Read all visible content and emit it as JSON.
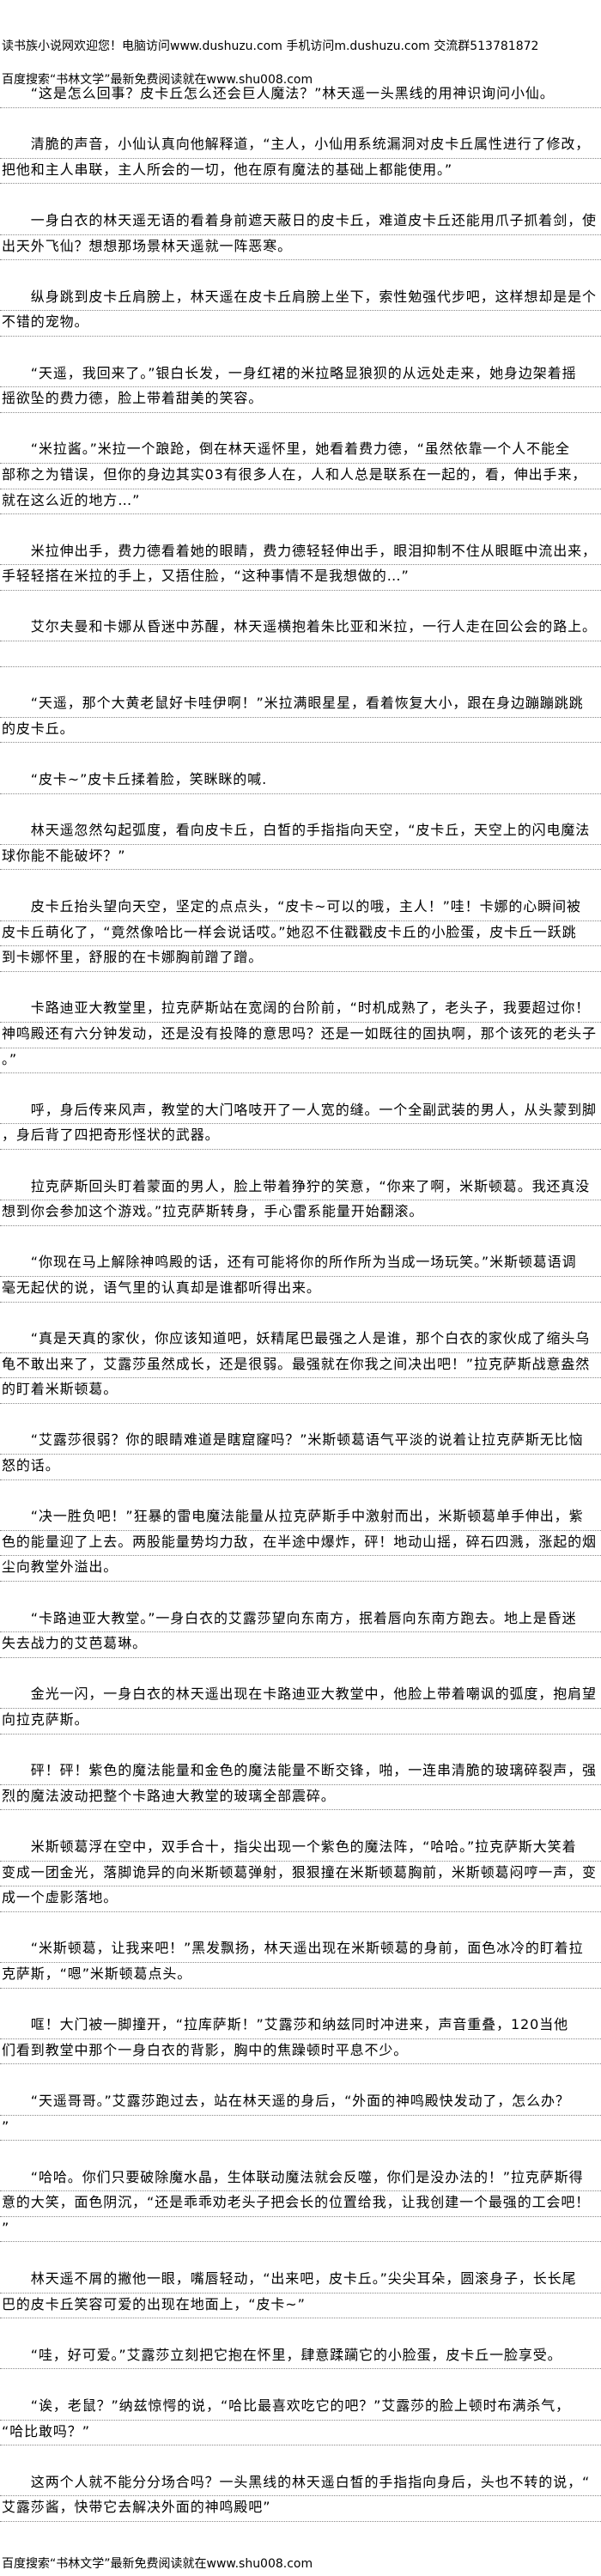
{
  "header": {
    "site_notice": "读书族小说网欢迎您！电脑访问www.dushuzu.com 手机访问m.dushuzu.com 交流群513781872",
    "search_notice": "百度搜索“书林文学”最新免费阅读就在www.shu008.com"
  },
  "paragraphs": [
    [
      "　　“这是怎么回事？皮卡丘怎么还会巨人魔法？”林天遥一头黑线的用神识询问小仙。"
    ],
    [
      "　　清脆的声音，小仙认真向他解释道，“主人，小仙用系统漏洞对皮卡丘属性进行了修改，",
      "把他和主人串联，主人所会的一切，他在原有魔法的基础上都能使用。”"
    ],
    [
      "　　一身白衣的林天遥无语的看着身前遮天蔽日的皮卡丘，难道皮卡丘还能用爪子抓着剑，使",
      "出天外飞仙？想想那场景林天遥就一阵恶寒。"
    ],
    [
      "　　纵身跳到皮卡丘肩膀上，林天遥在皮卡丘肩膀上坐下，索性勉强代步吧，这样想却是是个",
      "不错的宠物。"
    ],
    [
      "　　“天遥，我回来了。”银白长发，一身红裙的米拉略显狼狈的从远处走来，她身边架着摇",
      "摇欲坠的费力德，脸上带着甜美的笑容。"
    ],
    [
      "　　“米拉酱。”米拉一个踉跄，倒在林天遥怀里，她看着费力德，“虽然依靠一个人不能全",
      "部称之为错误，但你的身边其实03有很多人在，人和人总是联系在一起的，看，伸出手来，",
      "就在这么近的地方…”"
    ],
    [
      "　　米拉伸出手，费力德看着她的眼睛，费力德轻轻伸出手，眼泪抑制不住从眼眶中流出来，",
      "手轻轻搭在米拉的手上，又捂住脸，“这种事情不是我想做的…”"
    ],
    [
      "　　艾尔夫曼和卡娜从昏迷中苏醒，林天遥横抱着朱比亚和米拉，一行人走在回公会的路上。",
      ""
    ],
    [
      "　　“天遥，那个大黄老鼠好卡哇伊啊！”米拉满眼星星，看着恢复大小，跟在身边蹦蹦跳跳",
      "的皮卡丘。"
    ],
    [
      "　　“皮卡~”皮卡丘揉着脸，笑眯眯的喊."
    ],
    [
      "　　林天遥忽然勾起弧度，看向皮卡丘，白皙的手指指向天空，“皮卡丘，天空上的闪电魔法",
      "球你能不能破坏？”"
    ],
    [
      "　　皮卡丘抬头望向天空，坚定的点点头，“皮卡~可以的哦，主人！”哇！卡娜的心瞬间被",
      "皮卡丘萌化了，“竟然像哈比一样会说话哎。”她忍不住戳戳皮卡丘的小脸蛋，皮卡丘一跃跳",
      "到卡娜怀里，舒服的在卡娜胸前蹭了蹭。"
    ],
    [
      "　　卡路迪亚大教堂里，拉克萨斯站在宽阔的台阶前，“时机成熟了，老头子，我要超过你！",
      "神鸣殿还有六分钟发动，还是没有投降的意思吗？还是一如既往的固执啊，那个该死的老头子",
      "。”"
    ],
    [
      "　　呼，身后传来风声，教堂的大门咯吱开了一人宽的缝。一个全副武装的男人，从头蒙到脚",
      "，身后背了四把奇形怪状的武器。"
    ],
    [
      "　　拉克萨斯回头盯着蒙面的男人，脸上带着狰狞的笑意，“你来了啊，米斯顿葛。我还真没",
      "想到你会参加这个游戏。”拉克萨斯转身，手心雷系能量开始翻滚。"
    ],
    [
      "　　“你现在马上解除神鸣殿的话，还有可能将你的所作所为当成一场玩笑。”米斯顿葛语调",
      "毫无起伏的说，语气里的认真却是谁都听得出来。"
    ],
    [
      "　　“真是天真的家伙，你应该知道吧，妖精尾巴最强之人是谁，那个白衣的家伙成了缩头乌",
      "龟不敢出来了，艾露莎虽然成长，还是很弱。最强就在你我之间决出吧！”拉克萨斯战意盎然",
      "的盯着米斯顿葛。"
    ],
    [
      "　　“艾露莎很弱？你的眼睛难道是瞎窟窿吗？”米斯顿葛语气平淡的说着让拉克萨斯无比恼",
      "怒的话。"
    ],
    [
      "　　“决一胜负吧！”狂暴的雷电魔法能量从拉克萨斯手中激射而出，米斯顿葛单手伸出，紫",
      "色的能量迎了上去。两股能量势均力敌，在半途中爆炸，砰！地动山摇，碎石四溅，涨起的烟",
      "尘向教堂外溢出。"
    ],
    [
      "　　“卡路迪亚大教堂。”一身白衣的艾露莎望向东南方，抿着唇向东南方跑去。地上是昏迷",
      "失去战力的艾芭葛琳。"
    ],
    [
      "　　金光一闪，一身白衣的林天遥出现在卡路迪亚大教堂中，他脸上带着嘲讽的弧度，抱肩望",
      "向拉克萨斯。"
    ],
    [
      "　　砰！砰！紫色的魔法能量和金色的魔法能量不断交锋，啪，一连串清脆的玻璃碎裂声，强",
      "烈的魔法波动把整个卡路迪大教堂的玻璃全部震碎。"
    ],
    [
      "　　米斯顿葛浮在空中，双手合十，指尖出现一个紫色的魔法阵，“哈哈。”拉克萨斯大笑着",
      "变成一团金光，落脚诡异的向米斯顿葛弹射，狠狠撞在米斯顿葛胸前，米斯顿葛闷哼一声，变",
      "成一个虚影落地。"
    ],
    [
      "　　“米斯顿葛，让我来吧！”黑发飘扬，林天遥出现在米斯顿葛的身前，面色冰冷的盯着拉",
      "克萨斯，“嗯”米斯顿葛点头。"
    ],
    [
      "　　哐！大门被一脚撞开，“拉库萨斯！”艾露莎和纳兹同时冲进来，声音重叠，120当他",
      "们看到教堂中那个一身白衣的背影，胸中的焦躁顿时平息不少。"
    ],
    [
      "　　“天遥哥哥。”艾露莎跑过去，站在林天遥的身后，“外面的神鸣殿快发动了，怎么办？",
      "”"
    ],
    [
      "　　“哈哈。你们只要破除魔水晶，生体联动魔法就会反噬，你们是没办法的！”拉克萨斯得",
      "意的大笑，面色阴沉，“还是乖乖劝老头子把会长的位置给我，让我创建一个最强的工会吧！",
      "”"
    ],
    [
      "　　林天遥不屑的撇他一眼，嘴唇轻动，“出来吧，皮卡丘。”尖尖耳朵，圆滚身子，长长尾",
      "巴的皮卡丘笑容可爱的出现在地面上，“皮卡~”"
    ],
    [
      "　　“哇，好可爱。”艾露莎立刻把它抱在怀里，肆意蹂躏它的小脸蛋，皮卡丘一脸享受。"
    ],
    [
      "　　“诶，老鼠？”纳兹惊愕的说，“哈比最喜欢吃它的吧？”艾露莎的脸上顿时布满杀气，",
      "“哈比敢吗？”"
    ],
    [
      "　　这两个人就不能分分场合吗？一头黑线的林天遥白皙的手指指向身后，头也不转的说，“",
      "艾露莎酱，快带它去解决外面的神鸣殿吧”"
    ]
  ],
  "footer": {
    "search_notice": "百度搜索“书林文学”最新免费阅读就在www.shu008.com"
  }
}
